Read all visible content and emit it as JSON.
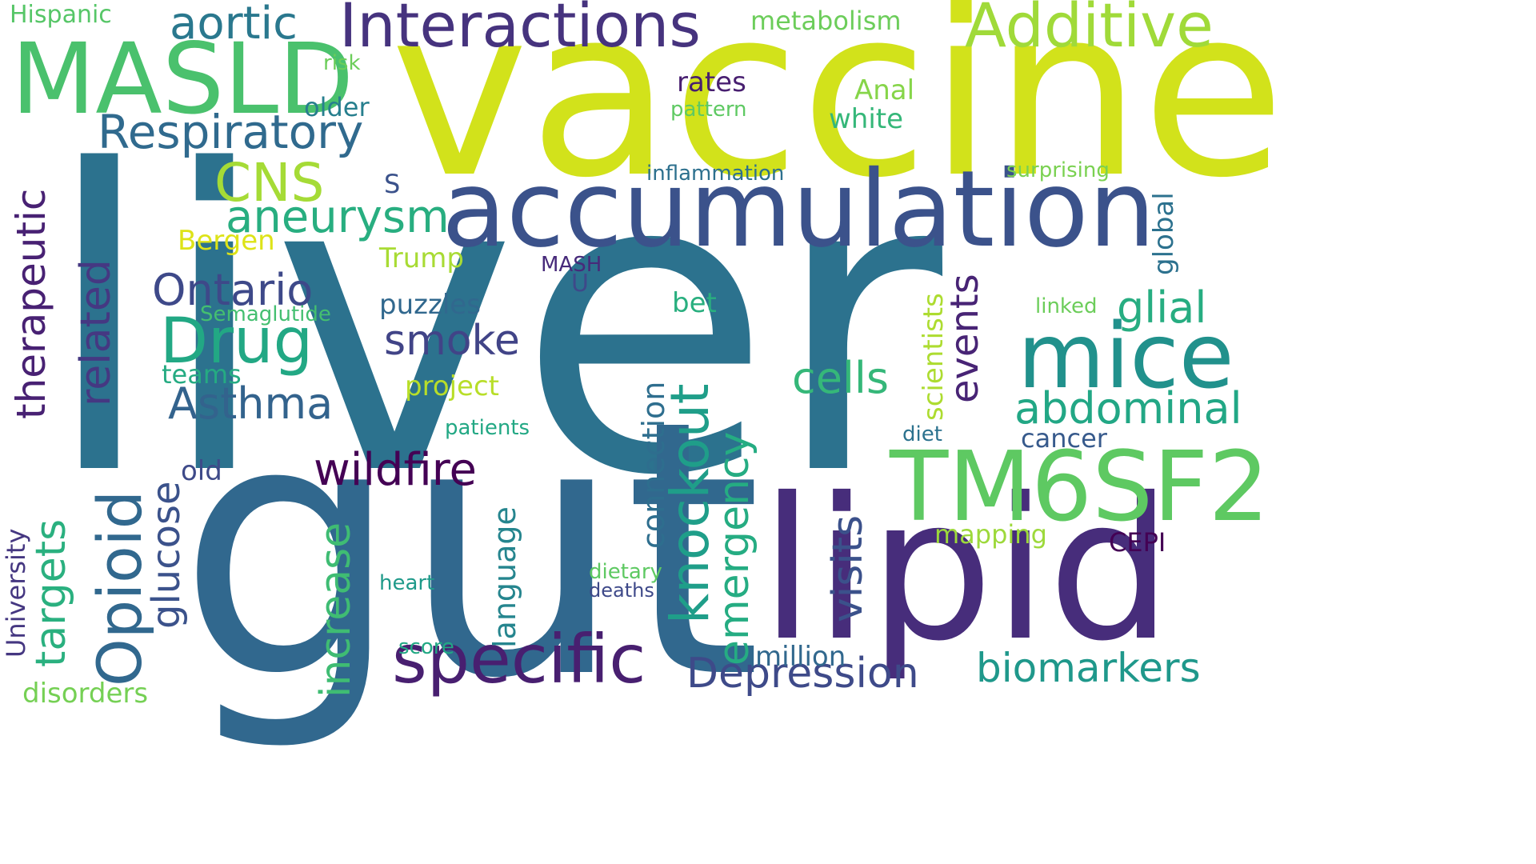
{
  "words": [
    {
      "text": "liver",
      "color": "#2c728e"
    },
    {
      "text": "vaccine",
      "color": "#d2e21b"
    },
    {
      "text": "gut",
      "color": "#31688e"
    },
    {
      "text": "accumulation",
      "color": "#3b528b"
    },
    {
      "text": "lipid",
      "color": "#472d7b"
    },
    {
      "text": "MASLD",
      "color": "#4ac16d"
    },
    {
      "text": "Interactions",
      "color": "#46337e"
    },
    {
      "text": "Additive",
      "color": "#a0da39"
    },
    {
      "text": "TM6SF2",
      "color": "#5ec962"
    },
    {
      "text": "mice",
      "color": "#21918c"
    },
    {
      "text": "specific",
      "color": "#481f70"
    },
    {
      "text": "Drug",
      "color": "#22a884"
    },
    {
      "text": "knockout",
      "color": "#1f9e89"
    },
    {
      "text": "Respiratory",
      "color": "#306a8e"
    },
    {
      "text": "aortic",
      "color": "#2a788e"
    },
    {
      "text": "CNS",
      "color": "#a5db36"
    },
    {
      "text": "aneurysm",
      "color": "#28ae80"
    },
    {
      "text": "therapeutic",
      "color": "#482173"
    },
    {
      "text": "related",
      "color": "#453882"
    },
    {
      "text": "Ontario",
      "color": "#3e4989"
    },
    {
      "text": "Asthma",
      "color": "#33638d"
    },
    {
      "text": "Opioid",
      "color": "#31688e"
    },
    {
      "text": "glucose",
      "color": "#3b528b"
    },
    {
      "text": "targets",
      "color": "#2ab07f"
    },
    {
      "text": "University",
      "color": "#453781"
    },
    {
      "text": "increase",
      "color": "#3fbc73"
    },
    {
      "text": "wildfire",
      "color": "#440154"
    },
    {
      "text": "smoke",
      "color": "#414487"
    },
    {
      "text": "cells",
      "color": "#35b779"
    },
    {
      "text": "events",
      "color": "#482475"
    },
    {
      "text": "glial",
      "color": "#27ad81"
    },
    {
      "text": "abdominal",
      "color": "#22a785"
    },
    {
      "text": "biomarkers",
      "color": "#1f988b"
    },
    {
      "text": "emergency",
      "color": "#25ac82"
    },
    {
      "text": "visits",
      "color": "#3b518b"
    },
    {
      "text": "connection",
      "color": "#2e6e8e"
    },
    {
      "text": "Depression",
      "color": "#3e4a89"
    },
    {
      "text": "language",
      "color": "#25858e"
    },
    {
      "text": "scientists",
      "color": "#addc30"
    },
    {
      "text": "global",
      "color": "#2c718e"
    },
    {
      "text": "cancer",
      "color": "#375a8c"
    },
    {
      "text": "mapping",
      "color": "#9dd93b"
    },
    {
      "text": "CEPI",
      "color": "#440154"
    },
    {
      "text": "Hispanic",
      "color": "#56c667"
    },
    {
      "text": "metabolism",
      "color": "#6ccd5a"
    },
    {
      "text": "risk",
      "color": "#6ccd5a"
    },
    {
      "text": "older",
      "color": "#277f8e"
    },
    {
      "text": "rates",
      "color": "#481f70"
    },
    {
      "text": "Anal",
      "color": "#86d549"
    },
    {
      "text": "white",
      "color": "#35b779"
    },
    {
      "text": "pattern",
      "color": "#5ec962"
    },
    {
      "text": "inflammation",
      "color": "#2d708e"
    },
    {
      "text": "surprising",
      "color": "#7ad151"
    },
    {
      "text": "S",
      "color": "#3b528b"
    },
    {
      "text": "Bergen",
      "color": "#dde318"
    },
    {
      "text": "Trump",
      "color": "#a8db34"
    },
    {
      "text": "MASH",
      "color": "#472a7a"
    },
    {
      "text": "U",
      "color": "#3e4989"
    },
    {
      "text": "puzzles",
      "color": "#31688e"
    },
    {
      "text": "bet",
      "color": "#29af7f"
    },
    {
      "text": "linked",
      "color": "#6ccd5a"
    },
    {
      "text": "Semaglutide",
      "color": "#44bf70"
    },
    {
      "text": "teams",
      "color": "#25ab82"
    },
    {
      "text": "project",
      "color": "#b8de29"
    },
    {
      "text": "diet",
      "color": "#2c728e"
    },
    {
      "text": "patients",
      "color": "#22a884"
    },
    {
      "text": "old",
      "color": "#3e4a89"
    },
    {
      "text": "dietary",
      "color": "#5ec962"
    },
    {
      "text": "heart",
      "color": "#1f9a8a"
    },
    {
      "text": "deaths",
      "color": "#3e4989"
    },
    {
      "text": "score",
      "color": "#22a884"
    },
    {
      "text": "million",
      "color": "#31688e"
    },
    {
      "text": "disorders",
      "color": "#75d054"
    }
  ]
}
